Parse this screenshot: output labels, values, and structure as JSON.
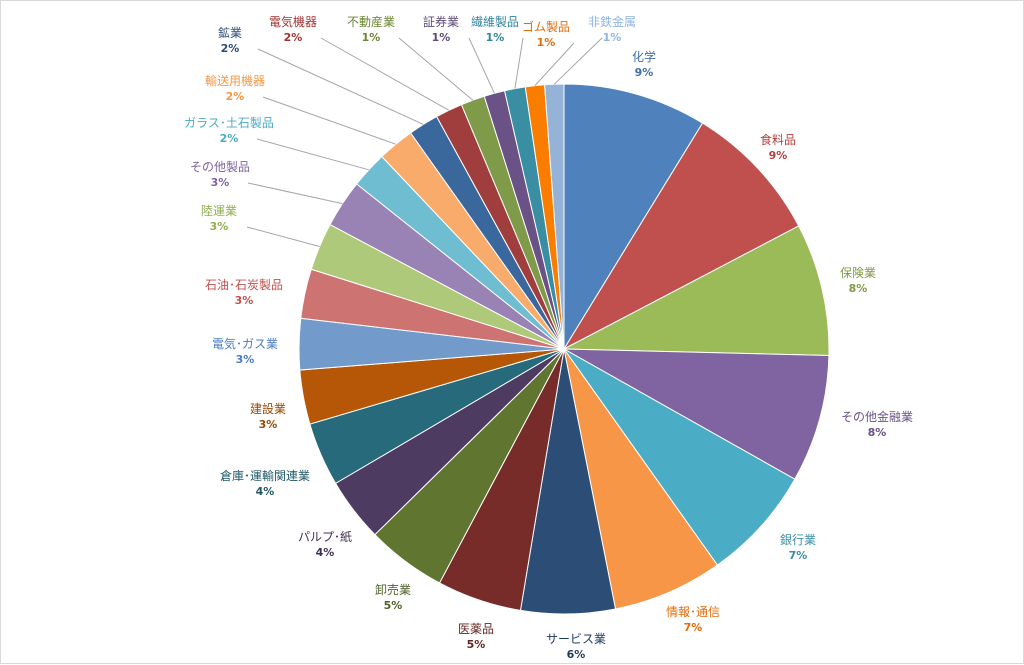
{
  "chart_data": {
    "type": "pie",
    "slices": [
      {
        "label": "化学",
        "pct": "9%",
        "value": 9.0,
        "color": "#4f81bd"
      },
      {
        "label": "食料品",
        "pct": "9%",
        "value": 8.8,
        "color": "#c0504d"
      },
      {
        "label": "保険業",
        "pct": "8%",
        "value": 8.3,
        "color": "#9bbb59"
      },
      {
        "label": "その他金融業",
        "pct": "8%",
        "value": 8.0,
        "color": "#8064a2"
      },
      {
        "label": "銀行業",
        "pct": "7%",
        "value": 7.2,
        "color": "#4bacc6"
      },
      {
        "label": "情報･通信",
        "pct": "7%",
        "value": 6.9,
        "color": "#f79646"
      },
      {
        "label": "サービス業",
        "pct": "6%",
        "value": 5.9,
        "color": "#2c4d75"
      },
      {
        "label": "医薬品",
        "pct": "5%",
        "value": 5.3,
        "color": "#772c2a"
      },
      {
        "label": "卸売業",
        "pct": "5%",
        "value": 5.0,
        "color": "#5f7530"
      },
      {
        "label": "パルプ･紙",
        "pct": "4%",
        "value": 4.0,
        "color": "#4d3b62"
      },
      {
        "label": "倉庫･運輸関連業",
        "pct": "4%",
        "value": 4.0,
        "color": "#276a7c"
      },
      {
        "label": "建設業",
        "pct": "3%",
        "value": 3.4,
        "color": "#b65708"
      },
      {
        "label": "電気･ガス業",
        "pct": "3%",
        "value": 3.2,
        "color": "#729aca"
      },
      {
        "label": "石油･石炭製品",
        "pct": "3%",
        "value": 3.1,
        "color": "#cd7371"
      },
      {
        "label": "陸運業",
        "pct": "3%",
        "value": 3.0,
        "color": "#afc97a"
      },
      {
        "label": "その他製品",
        "pct": "3%",
        "value": 3.0,
        "color": "#9983b5"
      },
      {
        "label": "ガラス･土石製品",
        "pct": "2%",
        "value": 2.3,
        "color": "#6fbdd1"
      },
      {
        "label": "輸送用機器",
        "pct": "2%",
        "value": 2.3,
        "color": "#f9ab6b"
      },
      {
        "label": "鉱業",
        "pct": "2%",
        "value": 1.9,
        "color": "#3a679c"
      },
      {
        "label": "電気機器",
        "pct": "2%",
        "value": 1.7,
        "color": "#9f3e3c"
      },
      {
        "label": "不動産業",
        "pct": "1%",
        "value": 1.5,
        "color": "#7f9a48"
      },
      {
        "label": "証券業",
        "pct": "1%",
        "value": 1.3,
        "color": "#6a5287"
      },
      {
        "label": "繊維製品",
        "pct": "1%",
        "value": 1.3,
        "color": "#3a8ea4"
      },
      {
        "label": "ゴム製品",
        "pct": "1%",
        "value": 1.2,
        "color": "#fa7d00"
      },
      {
        "label": "非鉄金属",
        "pct": "1%",
        "value": 1.2,
        "color": "#95b3d7"
      }
    ],
    "label_colors": {
      "化学": "#3d6fa8",
      "食料品": "#b5403e",
      "保険業": "#7f9a48",
      "その他金融業": "#6a5287",
      "銀行業": "#3a8ea4",
      "情報･通信": "#e36c09",
      "サービス業": "#1f3b5c",
      "医薬品": "#632523",
      "卸売業": "#4f6228",
      "パルプ･紙": "#3f3151",
      "倉庫･運輸関連業": "#215868",
      "建設業": "#974806",
      "電気･ガス業": "#4a7bbf",
      "石油･石炭製品": "#c0504d",
      "陸運業": "#8fad4f",
      "その他製品": "#8064a2",
      "ガラス･土石製品": "#4bacc6",
      "輸送用機器": "#f79646",
      "鉱業": "#2c4d75",
      "電気機器": "#a03533",
      "不動産業": "#6a8532",
      "証券業": "#5d4a7a",
      "繊維製品": "#31859c",
      "ゴム製品": "#e46c0a",
      "非鉄金属": "#8eb4e3"
    }
  }
}
